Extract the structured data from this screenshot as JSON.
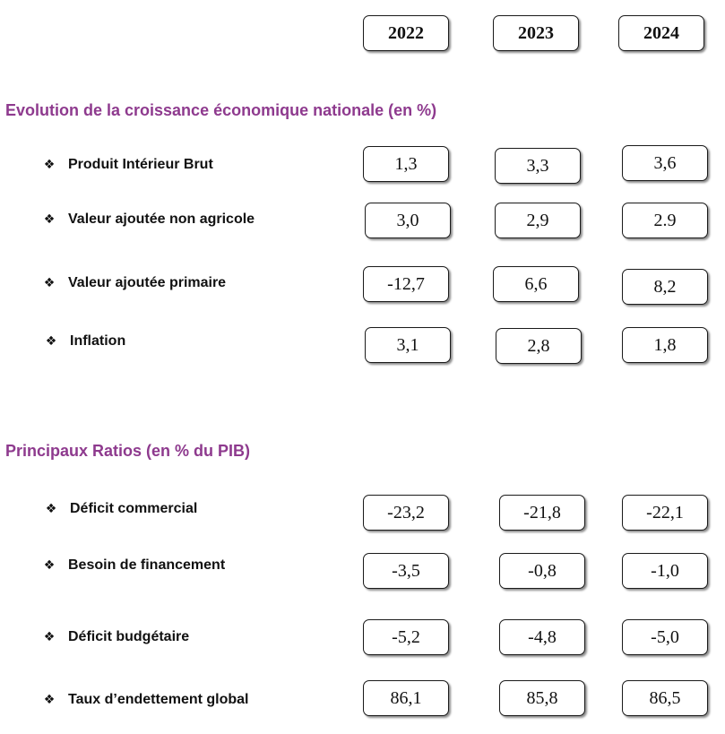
{
  "colors": {
    "section_title": "#8e3a8e",
    "text": "#111111",
    "box_border": "#1a1a1a"
  },
  "bullet_icon": "diamond-four-petal-icon",
  "bullet_glyph": "❖",
  "years": [
    "2022",
    "2023",
    "2024"
  ],
  "section1": {
    "title": "Evolution de la croissance économique nationale (en %)",
    "rows": [
      {
        "label": "Produit Intérieur Brut",
        "values": [
          "1,3",
          "3,3",
          "3,6"
        ]
      },
      {
        "label": "Valeur ajoutée non agricole",
        "values": [
          "3,0",
          "2,9",
          "2.9"
        ]
      },
      {
        "label": "Valeur ajoutée primaire",
        "values": [
          "-12,7",
          "6,6",
          "8,2"
        ]
      },
      {
        "label": "Inflation",
        "values": [
          "3,1",
          "2,8",
          "1,8"
        ]
      }
    ]
  },
  "section2": {
    "title": "Principaux Ratios (en % du PIB)",
    "rows": [
      {
        "label": "Déficit commercial",
        "values": [
          "-23,2",
          "-21,8",
          "-22,1"
        ]
      },
      {
        "label": "Besoin de financement",
        "values": [
          "-3,5",
          "-0,8",
          "-1,0"
        ]
      },
      {
        "label": "Déficit budgétaire",
        "values": [
          "-5,2",
          "-4,8",
          "-5,0"
        ]
      },
      {
        "label": "Taux d’endettement global",
        "values": [
          "86,1",
          "85,8",
          "86,5"
        ]
      }
    ]
  }
}
